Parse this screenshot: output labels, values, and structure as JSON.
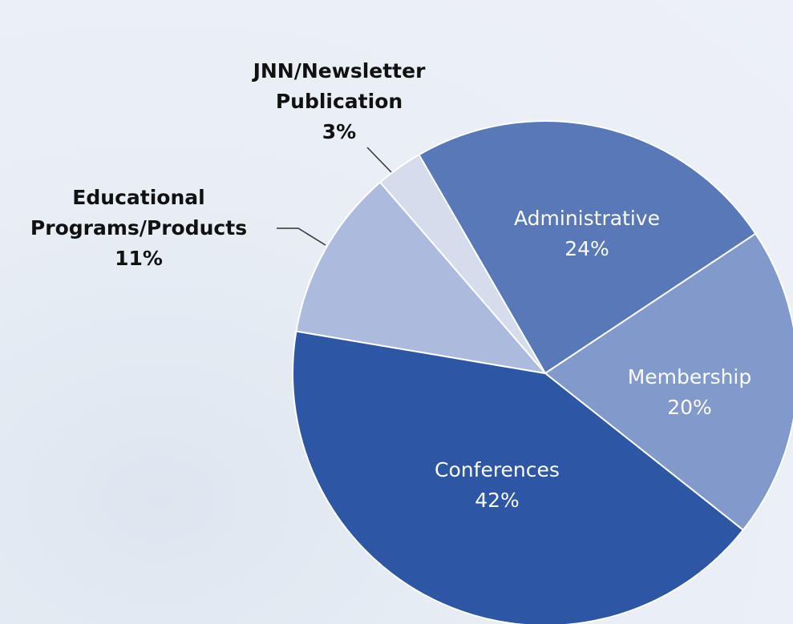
{
  "chart_data": {
    "type": "pie",
    "categories": [
      "Administrative",
      "Membership",
      "Conferences",
      "Educational Programs/Products",
      "JNN/Newsletter Publication"
    ],
    "values": [
      24,
      20,
      42,
      11,
      3
    ],
    "value_labels": [
      "24%",
      "20%",
      "42%",
      "11%",
      "3%"
    ],
    "colors": [
      "#5878b8",
      "#8199cb",
      "#2d56a5",
      "#abbadd",
      "#d5dcec"
    ]
  }
}
